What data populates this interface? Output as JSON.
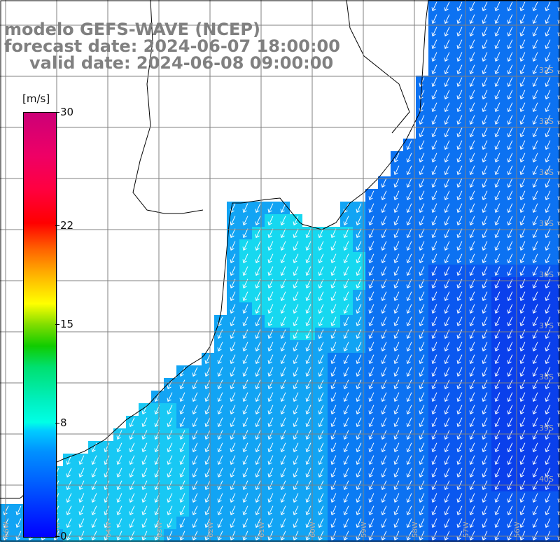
{
  "title": {
    "line1": "modelo GEFS-WAVE (NCEP)",
    "line2": "forecast date: 2024-06-07 18:00:00",
    "line3": "valid date: 2024-06-08 09:00:00"
  },
  "colorbar": {
    "unit": "[m/s]",
    "ticks": [
      "30",
      "22",
      "15",
      "8",
      "0"
    ],
    "tick_values": [
      30,
      22,
      15,
      8,
      0
    ],
    "min": 0,
    "max": 30
  },
  "map": {
    "variable": "wind speed and direction",
    "latitude_labels": [
      "32S",
      "33S",
      "34S",
      "35S",
      "36S",
      "37S",
      "38S",
      "39S",
      "40S"
    ],
    "longitude_labels": [
      "66W",
      "65W",
      "64W",
      "63W",
      "62W",
      "61W",
      "60W",
      "59W",
      "58W",
      "57W",
      "56W"
    ],
    "prevailing_wind": "from north-northeast (arrows pointing south-southwest)",
    "colors": {
      "land": "#ffffff",
      "coastline": "#000000",
      "grid": "#808080",
      "arrows": "#ffffff",
      "lat_labels": "#b0b0b0"
    }
  }
}
